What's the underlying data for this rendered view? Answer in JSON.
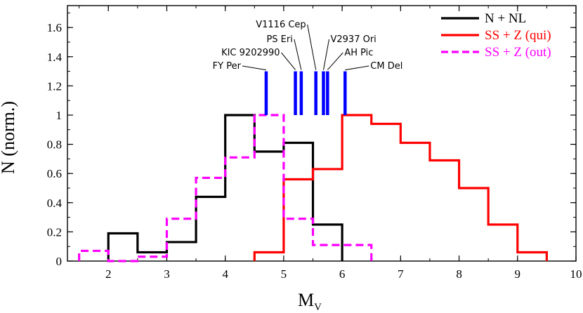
{
  "chart_data": {
    "type": "step-histogram",
    "xlabel": "M",
    "xlabel_sub": "V",
    "ylabel": "N (norm.)",
    "xlim": [
      1.3,
      10
    ],
    "ylim": [
      0,
      1.75
    ],
    "xticks": [
      2,
      3,
      4,
      5,
      6,
      7,
      8,
      9,
      10
    ],
    "yticks": [
      0,
      0.2,
      0.4,
      0.6,
      0.8,
      1,
      1.2,
      1.4,
      1.6
    ],
    "x_minor_step": 0.5,
    "y_minor_step": 0.1,
    "legend_position": "top-right",
    "series": [
      {
        "name": "N + NL",
        "color": "#000000",
        "dash": "solid",
        "bin_edges": [
          2,
          2.5,
          3,
          3.5,
          4,
          4.5,
          5,
          5.5,
          6
        ],
        "values": [
          0.19,
          0.06,
          0.13,
          0.44,
          1.0,
          0.75,
          0.81,
          0.25
        ]
      },
      {
        "name": "SS + Z (qui)",
        "color": "#ff0000",
        "dash": "solid",
        "bin_edges": [
          4.5,
          5,
          5.5,
          6,
          6.5,
          7,
          7.5,
          8,
          8.5,
          9,
          9.5
        ],
        "values": [
          0.06,
          0.56,
          0.63,
          1.0,
          0.94,
          0.81,
          0.69,
          0.5,
          0.25,
          0.06
        ]
      },
      {
        "name": "SS + Z (out)",
        "color": "#ff00ff",
        "dash": "dashed",
        "bin_edges": [
          1.5,
          2,
          2.5,
          3,
          3.5,
          4,
          4.5,
          5,
          5.5,
          6,
          6.5
        ],
        "values": [
          0.07,
          0.0,
          0.03,
          0.29,
          0.57,
          0.71,
          1.0,
          0.29,
          0.11,
          0.11
        ]
      }
    ],
    "markers": [
      {
        "name": "FY Per",
        "x": 4.7
      },
      {
        "name": "KIC 9202990",
        "x": 5.2
      },
      {
        "name": "PS Eri",
        "x": 5.3
      },
      {
        "name": "V1116 Cep",
        "x": 5.55
      },
      {
        "name": "V2937 Ori",
        "x": 5.68
      },
      {
        "name": "AH Pic",
        "x": 5.75
      },
      {
        "name": "CM Del",
        "x": 6.05
      }
    ],
    "marker_color": "#0000ff",
    "marker_range": [
      1.0,
      1.3
    ]
  }
}
